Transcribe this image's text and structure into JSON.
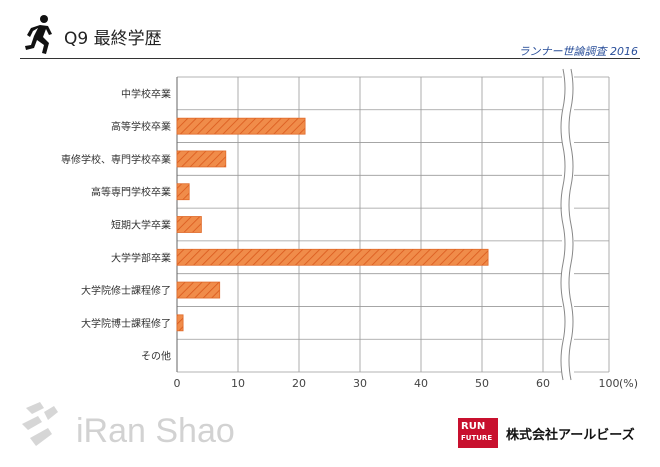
{
  "header": {
    "question_title": "Q9  最終学歴",
    "survey_name": "ランナー世論調査 2016"
  },
  "footer": {
    "brand_text": "iRan Shao",
    "run_badge_line1": "RUN",
    "run_badge_line2": "FUTURE",
    "company_name": "株式会社アールビーズ"
  },
  "colors": {
    "bar_fill": "#f08c4a",
    "hatch": "#e0632a",
    "grid": "#999999",
    "title_blue": "#2a4f9a",
    "badge_red": "#c8102e"
  },
  "chart_data": {
    "type": "bar",
    "orientation": "horizontal",
    "categories": [
      "中学校卒業",
      "高等学校卒業",
      "専修学校、専門学校卒業",
      "高等専門学校卒業",
      "短期大学卒業",
      "大学学部卒業",
      "大学院修士課程修了",
      "大学院博士課程修了",
      "その他"
    ],
    "values": [
      0,
      21,
      8,
      2,
      4,
      51,
      7,
      1,
      0
    ],
    "x_ticks": [
      "0",
      "10",
      "20",
      "30",
      "40",
      "50",
      "60",
      "100"
    ],
    "x_unit": "(%)",
    "xlim": [
      0,
      100
    ],
    "axis_break": "between 60 and 100",
    "grid": true,
    "hatch_pattern": "diagonal",
    "legend": "none"
  }
}
